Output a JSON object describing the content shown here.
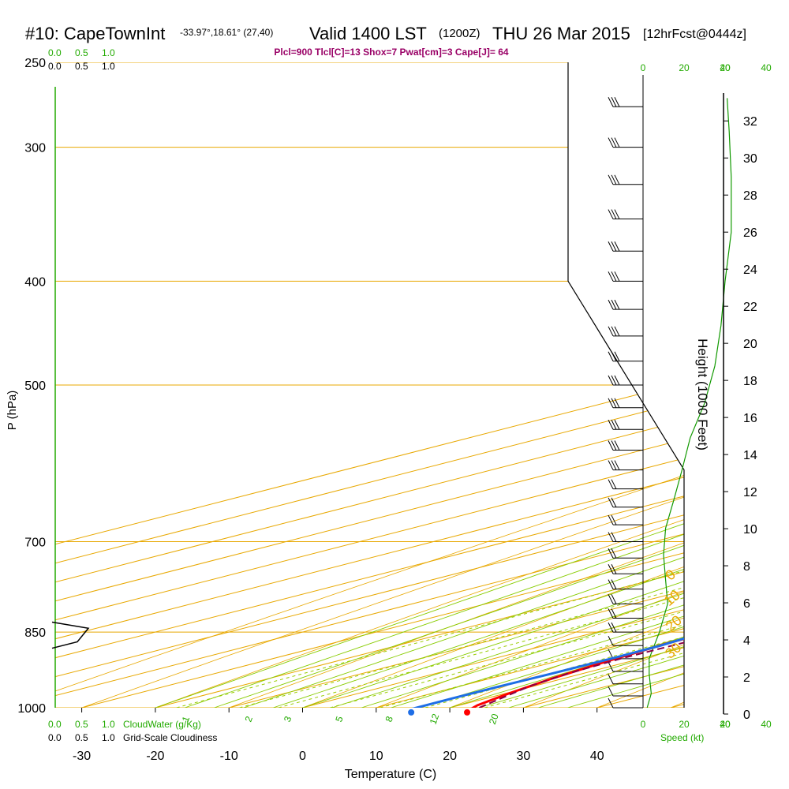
{
  "header": {
    "station": "#10: CapeTownInt",
    "coords": "-33.97°,18.61° (27,40)",
    "valid": "Valid 1400 LST",
    "zulu": "(1200Z)",
    "date": "THU 26 Mar 2015",
    "forecast": "[12hrFcst@0444z]",
    "indices": "Plcl=900 Tlcl[C]=13 Shox=7 Pwat[cm]=3 Cape[J]= 64"
  },
  "colors": {
    "temperature": "#ff0000",
    "dewpoint": "#1e6ee6",
    "parcel": "#880044",
    "isotherm": "#e8a800",
    "dry_adiabat": "#e8a800",
    "moist_adiabat": "#88cc00",
    "mixing_ratio": "#99cc00",
    "wind_speed": "#119900",
    "cloud": "#22aa00"
  },
  "labels": {
    "xlabel": "Temperature (C)",
    "ylabel": "P (hPa)",
    "height_label": "Height (1000 Feet)",
    "cloudwater_label": "CloudWater (g/Kg)",
    "cloudiness_label": "Grid-Scale Cloudiness",
    "speed_label": "Speed (kt)",
    "scale_top_green": [
      "0.0",
      "0.5",
      "1.0"
    ],
    "scale_top_black": [
      "0.0",
      "0.5",
      "1.0"
    ],
    "scale_bot_green": [
      "0.0",
      "0.5",
      "1.0"
    ],
    "scale_bot_black": [
      "0.0",
      "0.5",
      "1.0"
    ]
  },
  "chart_data": {
    "type": "line",
    "title": "#10: CapeTownInt  Valid 1400 LST (1200Z) THU 26 Mar 2015 [12hrFcst@0444z]",
    "xlabel": "Temperature (C)",
    "ylabel": "P (hPa)",
    "xlim": [
      -35,
      45
    ],
    "ylim": [
      1000,
      250
    ],
    "y_scale": "log",
    "x_ticks": [
      -30,
      -20,
      -10,
      0,
      10,
      20,
      30,
      40
    ],
    "pressure_ticks": [
      250,
      300,
      400,
      500,
      700,
      850,
      1000
    ],
    "height_axis": {
      "label": "Height (1000 Feet)",
      "ticks": [
        0,
        2,
        4,
        6,
        8,
        10,
        12,
        14,
        16,
        18,
        20,
        22,
        24,
        26,
        28,
        30,
        32
      ]
    },
    "speed_axis": {
      "label": "Speed (kt)",
      "ticks_black": [
        0,
        20,
        40
      ],
      "ticks_green": [
        20,
        40,
        60
      ]
    },
    "isotherm_labels": [
      "10",
      "0",
      "-10",
      "-20",
      "-30"
    ],
    "isotherm_label_values": [
      10,
      0,
      -10,
      -20,
      -30
    ],
    "theta_labels": [
      "0",
      "10",
      "20",
      "30"
    ],
    "theta_label_values": [
      0,
      10,
      20,
      30
    ],
    "mixing_ratio_labels": [
      "1",
      "2",
      "3",
      "5",
      "8",
      "12",
      "20"
    ],
    "mixing_ratio_values": [
      1,
      2,
      3,
      5,
      8,
      12,
      20
    ],
    "series": [
      {
        "name": "Temperature",
        "points": [
          [
            24.5,
            1010
          ],
          [
            22.5,
            995
          ],
          [
            20.5,
            970
          ],
          [
            18.5,
            940
          ],
          [
            16.8,
            905
          ],
          [
            15.5,
            870
          ],
          [
            15.2,
            845
          ],
          [
            15.8,
            830
          ],
          [
            17.5,
            815
          ],
          [
            18.4,
            800
          ],
          [
            17.8,
            770
          ],
          [
            17.2,
            740
          ],
          [
            16.6,
            710
          ],
          [
            16.3,
            680
          ],
          [
            16.5,
            650
          ],
          [
            16.7,
            625
          ],
          [
            16.2,
            600
          ],
          [
            15.5,
            570
          ],
          [
            14.5,
            535
          ],
          [
            13.3,
            500
          ],
          [
            12.3,
            470
          ],
          [
            11.2,
            440
          ],
          [
            10.0,
            410
          ],
          [
            8.5,
            380
          ],
          [
            7.0,
            355
          ],
          [
            5.5,
            335
          ],
          [
            3.5,
            315
          ],
          [
            1.5,
            300
          ],
          [
            -0.5,
            285
          ],
          [
            -2.0,
            270
          ]
        ]
      },
      {
        "name": "Dewpoint",
        "points": [
          [
            15.5,
            1005
          ],
          [
            15.4,
            980
          ],
          [
            15.5,
            955
          ],
          [
            15.8,
            930
          ],
          [
            16.0,
            900
          ],
          [
            15.8,
            875
          ],
          [
            15.2,
            860
          ],
          [
            14.5,
            850
          ],
          [
            12.0,
            838
          ],
          [
            8.5,
            828
          ],
          [
            5.3,
            818
          ],
          [
            5.7,
            790
          ],
          [
            5.8,
            770
          ],
          [
            5.3,
            745
          ],
          [
            4.0,
            720
          ],
          [
            2.5,
            700
          ],
          [
            0.6,
            675
          ],
          [
            0.0,
            650
          ],
          [
            -0.1,
            625
          ],
          [
            -0.5,
            600
          ],
          [
            -1.3,
            580
          ],
          [
            -3.0,
            555
          ],
          [
            -5.8,
            525
          ],
          [
            -7.9,
            500
          ],
          [
            -11.0,
            475
          ],
          [
            -12.0,
            450
          ],
          [
            -13.5,
            420
          ],
          [
            -14.8,
            395
          ],
          [
            -15.8,
            375
          ],
          [
            -15.8,
            355
          ],
          [
            -15.5,
            345
          ],
          [
            -14.0,
            330
          ],
          [
            -12.5,
            315
          ],
          [
            -11.2,
            305
          ],
          [
            -9.5,
            290
          ],
          [
            -7.8,
            285
          ],
          [
            -7.2,
            280
          ],
          [
            -7.2,
            270
          ]
        ]
      },
      {
        "name": "Parcel",
        "points": [
          [
            24.0,
            1000
          ],
          [
            22.0,
            980
          ],
          [
            19.5,
            955
          ],
          [
            18.0,
            930
          ],
          [
            17.3,
            900
          ],
          [
            17.4,
            870
          ],
          [
            17.6,
            840
          ]
        ]
      }
    ],
    "surface_markers": {
      "temperature": 24.8,
      "dewpoint": 17.2,
      "pressure": 1010
    }
  }
}
